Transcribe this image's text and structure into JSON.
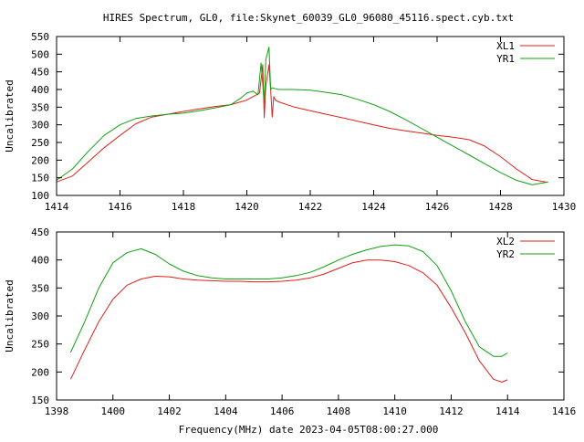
{
  "figure": {
    "title": "HIRES Spectrum, GL0, file:Skynet_60039_GL0_96080_45116.spect.cyb.txt",
    "xlabel": "Frequency(MHz) date 2023-04-05T08:00:27.000"
  },
  "chart_data": [
    {
      "type": "line",
      "title": "HIRES Spectrum, GL0, file:Skynet_60039_GL0_96080_45116.spect.cyb.txt",
      "xlabel": "",
      "ylabel": "Uncalibrated",
      "xlim": [
        1414,
        1430
      ],
      "ylim": [
        100,
        550
      ],
      "xticks": [
        1414,
        1416,
        1418,
        1420,
        1422,
        1424,
        1426,
        1428,
        1430
      ],
      "yticks": [
        100,
        150,
        200,
        250,
        300,
        350,
        400,
        450,
        500,
        550
      ],
      "legend_position": "top-right",
      "series": [
        {
          "name": "XL1",
          "color": "#e0201a",
          "x": [
            1414.0,
            1414.5,
            1415.0,
            1415.5,
            1416.0,
            1416.5,
            1417.0,
            1417.5,
            1418.0,
            1418.5,
            1419.0,
            1419.5,
            1420.0,
            1420.2,
            1420.4,
            1420.5,
            1420.55,
            1420.6,
            1420.7,
            1420.75,
            1420.8,
            1420.85,
            1420.9,
            1421.0,
            1421.5,
            1422.0,
            1422.5,
            1423.0,
            1423.5,
            1424.0,
            1424.5,
            1425.0,
            1425.5,
            1426.0,
            1426.5,
            1427.0,
            1427.5,
            1428.0,
            1428.5,
            1429.0,
            1429.5
          ],
          "values": [
            138,
            155,
            195,
            235,
            270,
            303,
            322,
            330,
            338,
            345,
            352,
            357,
            370,
            380,
            390,
            470,
            320,
            410,
            470,
            400,
            322,
            380,
            370,
            365,
            350,
            340,
            330,
            320,
            310,
            300,
            290,
            283,
            277,
            270,
            265,
            258,
            240,
            210,
            175,
            145,
            137
          ]
        },
        {
          "name": "YR1",
          "color": "#10a010",
          "x": [
            1414.0,
            1414.5,
            1415.0,
            1415.5,
            1416.0,
            1416.5,
            1417.0,
            1417.5,
            1418.0,
            1418.5,
            1419.0,
            1419.5,
            1419.8,
            1420.0,
            1420.2,
            1420.35,
            1420.45,
            1420.55,
            1420.6,
            1420.7,
            1420.75,
            1420.8,
            1420.9,
            1421.0,
            1421.5,
            1422.0,
            1422.5,
            1423.0,
            1423.5,
            1424.0,
            1424.5,
            1425.0,
            1425.5,
            1426.0,
            1426.5,
            1427.0,
            1427.5,
            1428.0,
            1428.5,
            1429.0,
            1429.5
          ],
          "values": [
            143,
            175,
            225,
            270,
            300,
            318,
            325,
            330,
            333,
            340,
            348,
            357,
            375,
            390,
            395,
            385,
            475,
            360,
            485,
            520,
            400,
            405,
            402,
            400,
            400,
            398,
            392,
            385,
            372,
            357,
            338,
            315,
            290,
            265,
            240,
            215,
            190,
            165,
            143,
            130,
            138
          ]
        }
      ]
    },
    {
      "type": "line",
      "title": "",
      "xlabel": "Frequency(MHz) date 2023-04-05T08:00:27.000",
      "ylabel": "Uncalibrated",
      "xlim": [
        1398,
        1416
      ],
      "ylim": [
        150,
        450
      ],
      "xticks": [
        1398,
        1400,
        1402,
        1404,
        1406,
        1408,
        1410,
        1412,
        1414,
        1416
      ],
      "yticks": [
        150,
        200,
        250,
        300,
        350,
        400,
        450
      ],
      "legend_position": "top-right",
      "series": [
        {
          "name": "XL2",
          "color": "#e0201a",
          "x": [
            1398.5,
            1399.0,
            1399.5,
            1400.0,
            1400.5,
            1401.0,
            1401.5,
            1402.0,
            1402.5,
            1403.0,
            1403.5,
            1404.0,
            1404.5,
            1405.0,
            1405.5,
            1406.0,
            1406.5,
            1407.0,
            1407.5,
            1408.0,
            1408.5,
            1409.0,
            1409.5,
            1410.0,
            1410.5,
            1411.0,
            1411.5,
            1412.0,
            1412.5,
            1413.0,
            1413.5,
            1413.8,
            1414.0
          ],
          "values": [
            187,
            240,
            290,
            330,
            355,
            366,
            371,
            370,
            366,
            364,
            363,
            362,
            362,
            361,
            361,
            362,
            364,
            368,
            375,
            385,
            395,
            400,
            400,
            397,
            390,
            377,
            355,
            315,
            270,
            220,
            187,
            182,
            186
          ]
        },
        {
          "name": "YR2",
          "color": "#10a010",
          "x": [
            1398.5,
            1399.0,
            1399.5,
            1400.0,
            1400.5,
            1401.0,
            1401.5,
            1402.0,
            1402.5,
            1403.0,
            1403.5,
            1404.0,
            1404.5,
            1405.0,
            1405.5,
            1406.0,
            1406.5,
            1407.0,
            1407.5,
            1408.0,
            1408.5,
            1409.0,
            1409.5,
            1410.0,
            1410.5,
            1411.0,
            1411.5,
            1412.0,
            1412.5,
            1413.0,
            1413.5,
            1413.8,
            1414.0
          ],
          "values": [
            235,
            290,
            350,
            395,
            413,
            420,
            410,
            393,
            380,
            372,
            368,
            366,
            366,
            366,
            366,
            368,
            372,
            378,
            388,
            400,
            410,
            418,
            424,
            427,
            425,
            415,
            390,
            345,
            290,
            245,
            228,
            228,
            234
          ]
        }
      ]
    }
  ]
}
